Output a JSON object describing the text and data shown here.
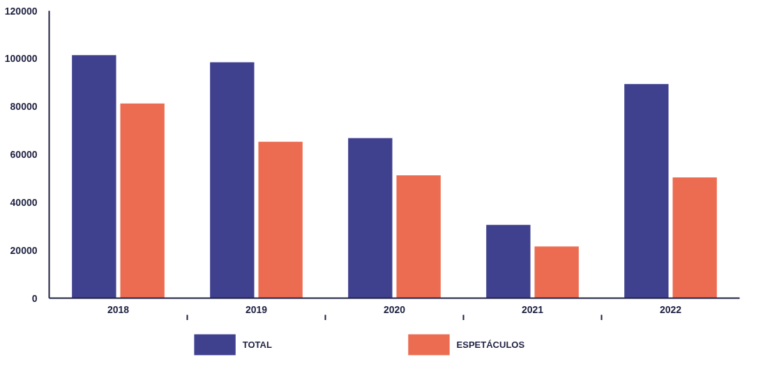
{
  "chart_data": {
    "type": "bar",
    "categories": [
      "2018",
      "2019",
      "2020",
      "2021",
      "2022"
    ],
    "series": [
      {
        "name": "TOTAL",
        "color": "#3f418f",
        "values": [
          101500,
          98500,
          66800,
          30600,
          89400
        ]
      },
      {
        "name": "ESPETÁCULOS",
        "color": "#ec6c52",
        "values": [
          81300,
          65300,
          51300,
          21600,
          50400
        ]
      }
    ],
    "ylim": [
      0,
      120000
    ],
    "yticks": [
      0,
      20000,
      40000,
      60000,
      80000,
      100000,
      120000
    ],
    "grid": false,
    "legend": "bottom"
  }
}
